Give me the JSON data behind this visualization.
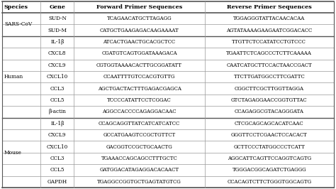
{
  "columns": [
    "Species",
    "Gene",
    "Forward Primer Sequences",
    "Reverse Primer Sequences"
  ],
  "rows": [
    [
      "SARS-CoV",
      "SUD-N",
      "TCAGAACATGCTTAGAGG",
      "TGGAGGGTATTACAACACAA"
    ],
    [
      "SARS-CoV",
      "SUD-M",
      "CATGCTGAAGAGACAAGAAAAT",
      "AGTATAAAAGAAGAATCGGACACC"
    ],
    [
      "Human",
      "IL-1β",
      "ATCACTGAACTGCACGCTCC",
      "TTGTTCTCCATATCCTGTCCC"
    ],
    [
      "Human",
      "CXCL8",
      "CGATGTCAGTGGATAAAGACA",
      "TGAATTCTCAGCCCTCTTCAAAAA"
    ],
    [
      "Human",
      "CXCL9",
      "CGTGGTAAAACACTTGCGGATATT",
      "CAATCATGCTTCCACTAACCGACT"
    ],
    [
      "Human",
      "CXCL10",
      "CCAATTTTGTCCACGTGTTG",
      "TTCTTGATGGCCTTCGATTC"
    ],
    [
      "Human",
      "CCL3",
      "AGCTGACTACTTTGAGACGAGCA",
      "CGGCTTCGCTTGGTTAGGA"
    ],
    [
      "Human",
      "CCL5",
      "TCCCCATATTCCTCGGAC",
      "GTCTAGAGGAACCGGTGTTAC"
    ],
    [
      "Human",
      "β-actin",
      "AGGCCACCCCAGAGGACAAC",
      "CCAGAGGCGTACAGGGATA"
    ],
    [
      "Mouse",
      "IL-1β",
      "CCAGCAGGTTATCATCATCATCC",
      "CTCGCAGCAGCACATCAAC"
    ],
    [
      "Mouse",
      "CXCL9",
      "GCCATGAAGTCCGCTGTTCT",
      "GGGTTCCTCGAACTCCACACT"
    ],
    [
      "Mouse",
      "CXCL10",
      "GACGGTCCGCTGCAACTG",
      "GCTTCCCTATGGCCCTCATT"
    ],
    [
      "Mouse",
      "CCL3",
      "TGAAACCAGCAGCCTTTGCTC",
      "AGGCATTCAGTTCCAGGTCAGTG"
    ],
    [
      "Mouse",
      "CCL5",
      "GATGGACATAGAGGACACAACT",
      "TGGGACGGCAGATCTGAGGG"
    ],
    [
      "Mouse",
      "GAPDH",
      "TGAGGCCGGTGCTGAGTATGTCG",
      "CCACAGTCTTCTGGGTGGCAGTG"
    ]
  ],
  "species_groups": {
    "SARS-CoV": [
      0,
      1
    ],
    "Human": [
      2,
      3,
      4,
      5,
      6,
      7,
      8
    ],
    "Mouse": [
      9,
      10,
      11,
      12,
      13,
      14
    ]
  },
  "line_color": "#999999",
  "thick_line_color": "#555555",
  "text_color": "#000000",
  "header_fontsize": 5.8,
  "cell_fontsize": 5.0,
  "species_fontsize": 5.3,
  "gene_fontsize": 5.2
}
